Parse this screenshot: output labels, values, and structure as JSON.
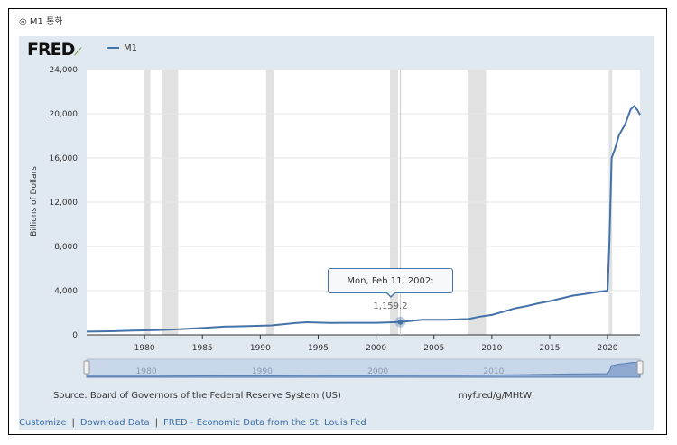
{
  "caption": "◎ M1 통화",
  "logo": {
    "text": "FRED"
  },
  "legend": {
    "label": "M1"
  },
  "chart_data": {
    "type": "line",
    "title": "",
    "xlabel": "",
    "ylabel": "Billions of Dollars",
    "xlim": [
      1975.0,
      2022.8
    ],
    "ylim": [
      0,
      24000
    ],
    "yticks": [
      0,
      4000,
      8000,
      12000,
      16000,
      20000,
      24000
    ],
    "ytick_labels": [
      "0",
      "4,000",
      "8,000",
      "12,000",
      "16,000",
      "20,000",
      "24,000"
    ],
    "xticks": [
      1980,
      1985,
      1990,
      1995,
      2000,
      2005,
      2010,
      2015,
      2020
    ],
    "recessions": [
      [
        1980.0,
        1980.5
      ],
      [
        1981.5,
        1982.9
      ],
      [
        1990.5,
        1991.2
      ],
      [
        2001.2,
        2001.9
      ],
      [
        2007.9,
        2009.5
      ],
      [
        2020.1,
        2020.4
      ]
    ],
    "series": [
      {
        "name": "M1",
        "color": "#4572a7",
        "x": [
          1975,
          1977,
          1979,
          1981,
          1983,
          1985,
          1987,
          1989,
          1991,
          1993,
          1994,
          1996,
          1998,
          2000,
          2002.1,
          2004,
          2006,
          2008,
          2009,
          2010,
          2011,
          2012,
          2013,
          2014,
          2015,
          2016,
          2017,
          2018,
          2019,
          2020.0,
          2020.15,
          2020.35,
          2020.6,
          2021.0,
          2021.5,
          2022.0,
          2022.3,
          2022.6,
          2022.8
        ],
        "y": [
          290,
          330,
          385,
          430,
          510,
          620,
          750,
          790,
          860,
          1070,
          1140,
          1080,
          1090,
          1090,
          1159.2,
          1360,
          1370,
          1440,
          1660,
          1800,
          2100,
          2400,
          2600,
          2850,
          3050,
          3300,
          3550,
          3700,
          3850,
          4000,
          8000,
          16000,
          16700,
          18100,
          19000,
          20400,
          20700,
          20300,
          19900
        ]
      }
    ],
    "tooltip": {
      "date": "Mon, Feb 11, 2002",
      "value": "1,159.2"
    },
    "navigator": {
      "labels": [
        "1980",
        "1990",
        "2000",
        "2010"
      ]
    }
  },
  "source": "Source: Board of Governors of the Federal Reserve System (US)",
  "shortlink": "myf.red/g/MHtW",
  "footer": {
    "customize": "Customize",
    "download": "Download Data",
    "fred": "FRED - Economic Data from the St. Louis Fed",
    "sep": "|"
  }
}
